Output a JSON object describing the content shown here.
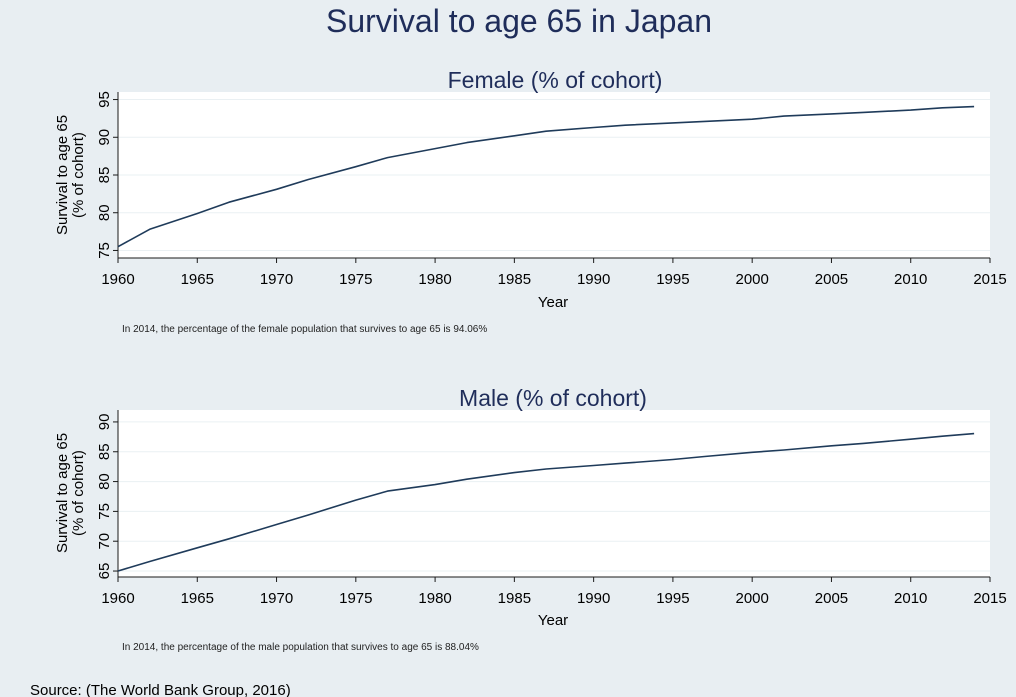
{
  "title": "Survival to age 65 in Japan",
  "source": "Source: (The World Bank Group, 2016)",
  "colors": {
    "background": "#e8eef2",
    "plot_background": "#ffffff",
    "line": "#1f3b5a",
    "title": "#1f2d5a"
  },
  "chart_data": [
    {
      "type": "line",
      "title": "Female (% of cohort)",
      "xlabel": "Year",
      "ylabel": [
        "Survival to age 65",
        "(% of cohort)"
      ],
      "xlim": [
        1960,
        2015
      ],
      "ylim": [
        74,
        96
      ],
      "xticks": [
        1960,
        1965,
        1970,
        1975,
        1980,
        1985,
        1990,
        1995,
        2000,
        2005,
        2010,
        2015
      ],
      "yticks": [
        75,
        80,
        85,
        90,
        95
      ],
      "grid": true,
      "note": "In 2014, the percentage of the female population that survives to age 65 is 94.06%",
      "series": [
        {
          "x": [
            1960,
            1962,
            1965,
            1967,
            1970,
            1972,
            1975,
            1977,
            1980,
            1982,
            1985,
            1987,
            1990,
            1992,
            1995,
            1997,
            2000,
            2002,
            2005,
            2007,
            2010,
            2012,
            2014
          ],
          "values": [
            75.5,
            77.8,
            79.9,
            81.4,
            83.1,
            84.4,
            86.1,
            87.3,
            88.5,
            89.3,
            90.2,
            90.8,
            91.3,
            91.6,
            91.9,
            92.1,
            92.4,
            92.8,
            93.1,
            93.3,
            93.6,
            93.9,
            94.06
          ]
        }
      ]
    },
    {
      "type": "line",
      "title": "Male (% of cohort)",
      "xlabel": "Year",
      "ylabel": [
        "Survival to age 65",
        "(% of cohort)"
      ],
      "xlim": [
        1960,
        2015
      ],
      "ylim": [
        64,
        92
      ],
      "xticks": [
        1960,
        1965,
        1970,
        1975,
        1980,
        1985,
        1990,
        1995,
        2000,
        2005,
        2010,
        2015
      ],
      "yticks": [
        65,
        70,
        75,
        80,
        85,
        90
      ],
      "grid": true,
      "note": "In 2014, the percentage of the male population that survives to age 65 is 88.04%",
      "series": [
        {
          "x": [
            1960,
            1962,
            1965,
            1967,
            1970,
            1972,
            1975,
            1977,
            1980,
            1982,
            1985,
            1987,
            1990,
            1992,
            1995,
            1997,
            2000,
            2002,
            2005,
            2007,
            2010,
            2012,
            2014
          ],
          "values": [
            65.0,
            66.6,
            68.9,
            70.4,
            72.8,
            74.4,
            76.9,
            78.4,
            79.5,
            80.4,
            81.5,
            82.1,
            82.7,
            83.1,
            83.7,
            84.2,
            84.9,
            85.3,
            86.0,
            86.4,
            87.1,
            87.6,
            88.04
          ]
        }
      ]
    }
  ]
}
